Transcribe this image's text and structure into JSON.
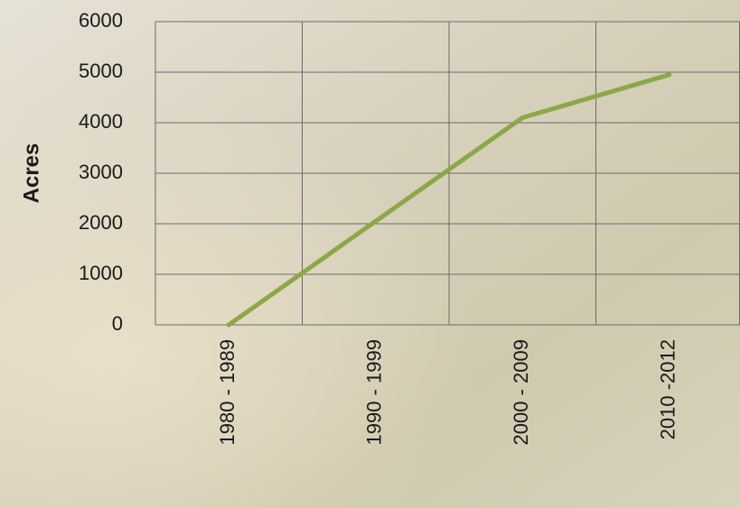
{
  "chart_data": {
    "type": "line",
    "y_label": "Acres",
    "categories": [
      "1980 - 1989",
      "1990 - 1999",
      "2000 - 2009",
      "2010 -2012"
    ],
    "values": [
      0,
      2050,
      4100,
      4950
    ],
    "color": "#8aa848",
    "ylim": [
      0,
      6000
    ],
    "yticks": [
      0,
      1000,
      2000,
      3000,
      4000,
      5000,
      6000
    ],
    "grid": true
  }
}
